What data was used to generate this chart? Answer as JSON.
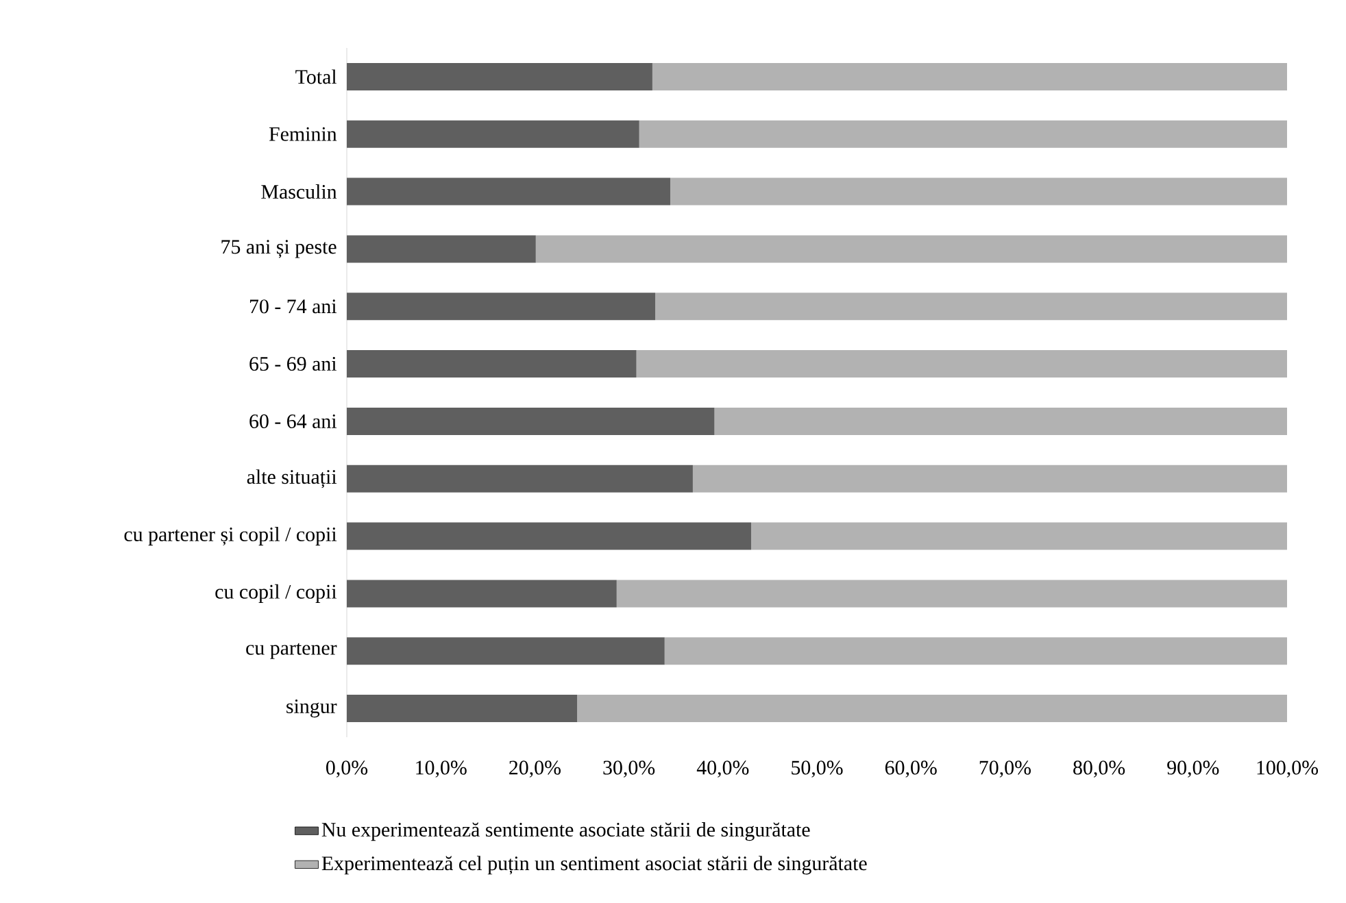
{
  "chart_data": {
    "type": "bar",
    "orientation": "horizontal",
    "stacked": true,
    "categories": [
      "Total",
      "Feminin",
      "Masculin",
      "75 ani și peste",
      "70 - 74 ani",
      "65 - 69 ani",
      "60 - 64 ani",
      "alte situații",
      "cu partener și copil / copii",
      "cu copil / copii",
      "cu partener",
      "singur"
    ],
    "series": [
      {
        "name": "Nu experimentează sentimente asociate stării de singurătate",
        "color": "#5f5f5f",
        "values": [
          32.5,
          31.1,
          34.4,
          20.1,
          32.8,
          30.8,
          39.1,
          36.8,
          43.0,
          28.7,
          33.8,
          24.5
        ]
      },
      {
        "name": "Experimentează cel puțin un sentiment asociat stării de singurătate",
        "color": "#b2b2b2",
        "values": [
          67.5,
          68.9,
          65.6,
          79.9,
          67.2,
          69.2,
          60.9,
          63.2,
          57.0,
          71.3,
          66.2,
          75.5
        ]
      }
    ],
    "xlim": [
      0,
      100
    ],
    "xticks": [
      {
        "value": 0,
        "label": "0,0%"
      },
      {
        "value": 10,
        "label": "10,0%"
      },
      {
        "value": 20,
        "label": "20,0%"
      },
      {
        "value": 30,
        "label": "30,0%"
      },
      {
        "value": 40,
        "label": "40,0%"
      },
      {
        "value": 50,
        "label": "50,0%"
      },
      {
        "value": 60,
        "label": "60,0%"
      },
      {
        "value": 70,
        "label": "70,0%"
      },
      {
        "value": 80,
        "label": "80,0%"
      },
      {
        "value": 90,
        "label": "90,0%"
      },
      {
        "value": 100,
        "label": "100,0%"
      }
    ],
    "grid": false,
    "legend": "bottom"
  }
}
